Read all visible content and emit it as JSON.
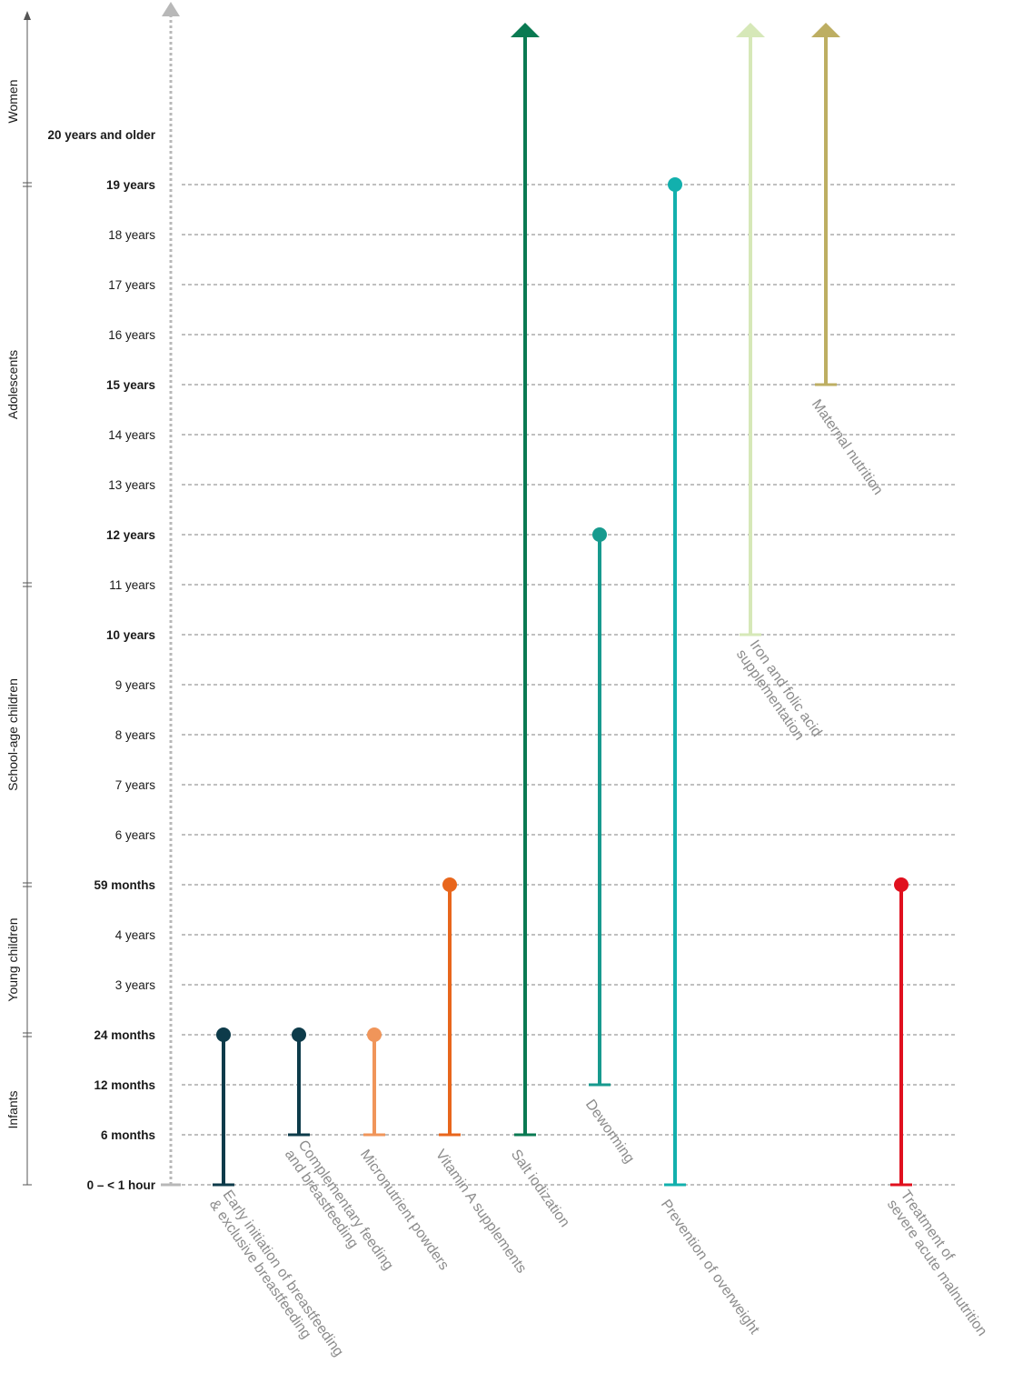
{
  "chart_data": {
    "type": "range",
    "title": "",
    "xlabel": "",
    "ylabel": "",
    "age_levels": [
      {
        "label": "0 – < 1 hour",
        "bold": true
      },
      {
        "label": "6 months",
        "bold": true
      },
      {
        "label": "12 months",
        "bold": true
      },
      {
        "label": "24 months",
        "bold": true
      },
      {
        "label": "3 years",
        "bold": false
      },
      {
        "label": "4 years",
        "bold": false
      },
      {
        "label": "59 months",
        "bold": true
      },
      {
        "label": "6 years",
        "bold": false
      },
      {
        "label": "7 years",
        "bold": false
      },
      {
        "label": "8 years",
        "bold": false
      },
      {
        "label": "9 years",
        "bold": false
      },
      {
        "label": "10 years",
        "bold": true
      },
      {
        "label": "11 years",
        "bold": false
      },
      {
        "label": "12 years",
        "bold": true
      },
      {
        "label": "13 years",
        "bold": false
      },
      {
        "label": "14 years",
        "bold": false
      },
      {
        "label": "15 years",
        "bold": true
      },
      {
        "label": "16 years",
        "bold": false
      },
      {
        "label": "17 years",
        "bold": false
      },
      {
        "label": "18 years",
        "bold": false
      },
      {
        "label": "19 years",
        "bold": true
      },
      {
        "label": "20 years and older",
        "bold": true
      }
    ],
    "groups": [
      {
        "label": "Infants",
        "from": "0 – < 1 hour",
        "to": "24 months"
      },
      {
        "label": "Young children",
        "from": "24 months",
        "to": "59 months"
      },
      {
        "label": "School-age children",
        "from": "59 months",
        "to": "11 years"
      },
      {
        "label": "Adolescents",
        "from": "11 years",
        "to": "19 years"
      },
      {
        "label": "Women",
        "from": "19 years",
        "to": "20 years and older"
      }
    ],
    "interventions": [
      {
        "label_lines": [
          "Early initiation of breastfeeding",
          "& exclusive breastfeeding"
        ],
        "start": "0 – < 1 hour",
        "end": "24 months",
        "end_marker": "dot",
        "color": "#0d3b4a"
      },
      {
        "label_lines": [
          "Complementary feeding",
          "and breastfeeding"
        ],
        "start": "6 months",
        "end": "24 months",
        "end_marker": "dot",
        "color": "#0d3b4a"
      },
      {
        "label_lines": [
          "Micronutrient powders"
        ],
        "start": "6 months",
        "end": "24 months",
        "end_marker": "dot",
        "color": "#f0955a"
      },
      {
        "label_lines": [
          "Vitamin A supplements"
        ],
        "start": "6 months",
        "end": "59 months",
        "end_marker": "dot",
        "color": "#e8661c"
      },
      {
        "label_lines": [
          "Salt iodization"
        ],
        "start": "6 months",
        "end": "20 years and older",
        "end_marker": "arrow",
        "color": "#0a7a52"
      },
      {
        "label_lines": [
          "Deworming"
        ],
        "start": "12 months",
        "end": "12 years",
        "end_marker": "dot",
        "color": "#179a8e"
      },
      {
        "label_lines": [
          "Prevention of overweight"
        ],
        "start": "0 – < 1 hour",
        "end": "19 years",
        "end_marker": "dot",
        "color": "#12b0ad"
      },
      {
        "label_lines": [
          "Iron and folic acid",
          "supplementation"
        ],
        "start": "10 years",
        "end": "20 years and older",
        "end_marker": "arrow",
        "color": "#d6e8b8"
      },
      {
        "label_lines": [
          "Maternal nutrition"
        ],
        "start": "15 years",
        "end": "20 years and older",
        "end_marker": "arrow",
        "color": "#bdae62"
      },
      {
        "label_lines": [
          "Treatment of",
          "severe acute malnutrition"
        ],
        "start": "0 – < 1 hour",
        "end": "59 months",
        "end_marker": "dot",
        "color": "#e0101e"
      }
    ],
    "colors": {
      "grid": "#9a9a9a",
      "axis": "#555555",
      "timeline": "#b8b8b8",
      "label": "#8c8c8c"
    }
  }
}
